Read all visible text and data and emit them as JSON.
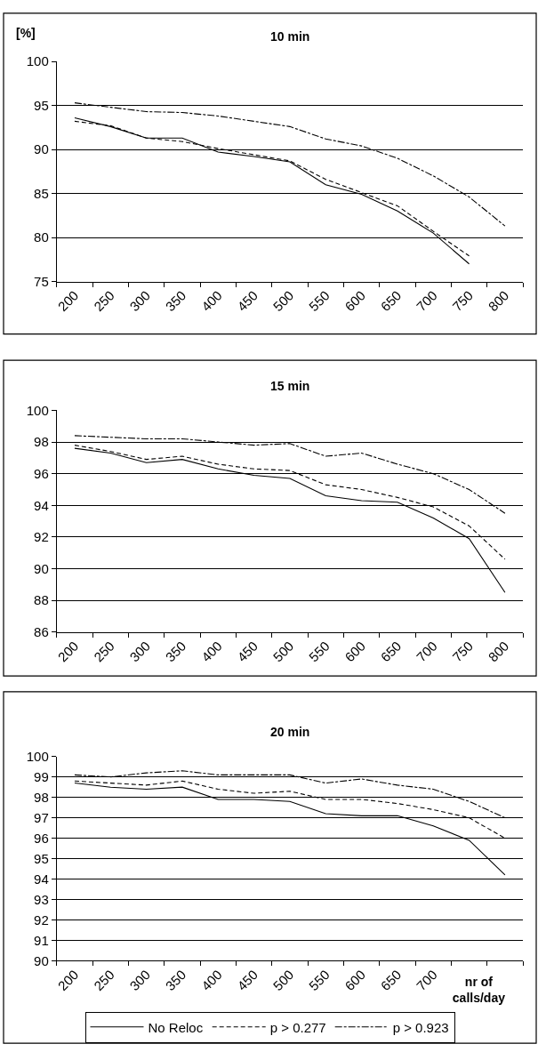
{
  "chart_data": [
    {
      "type": "line",
      "title": "10 min",
      "ylabel": "[%]",
      "categories": [
        "200",
        "250",
        "300",
        "350",
        "400",
        "450",
        "500",
        "550",
        "600",
        "650",
        "700",
        "750",
        "800"
      ],
      "ylim": [
        75,
        100
      ],
      "yticks": [
        75,
        80,
        85,
        90,
        95,
        100
      ],
      "grid": "y",
      "legend": false,
      "marker": "none",
      "series": [
        {
          "color": "#000000",
          "line_style": "solid",
          "values": [
            93.6,
            92.6,
            91.3,
            91.3,
            89.7,
            89.2,
            88.6,
            86.0,
            84.9,
            83.0,
            80.5,
            77.0,
            null
          ]
        },
        {
          "color": "#000000",
          "line_style": "dotted",
          "values": [
            93.2,
            92.7,
            91.3,
            90.9,
            90.1,
            89.4,
            88.7,
            86.6,
            85.1,
            83.6,
            80.7,
            77.9,
            null
          ]
        },
        {
          "color": "#000000",
          "line_style": "dashed",
          "values": [
            95.3,
            94.8,
            94.3,
            94.2,
            93.8,
            93.2,
            92.6,
            91.2,
            90.4,
            89.0,
            87.0,
            84.6,
            81.3
          ]
        }
      ]
    },
    {
      "type": "line",
      "title": "15 min",
      "categories": [
        "200",
        "250",
        "300",
        "350",
        "400",
        "450",
        "500",
        "550",
        "600",
        "650",
        "700",
        "750",
        "800"
      ],
      "ylim": [
        86,
        100
      ],
      "yticks": [
        86,
        88,
        90,
        92,
        94,
        96,
        98,
        100
      ],
      "grid": "y",
      "legend": false,
      "marker": "none",
      "series": [
        {
          "color": "#000000",
          "line_style": "solid",
          "values": [
            97.6,
            97.3,
            96.7,
            96.9,
            96.3,
            95.9,
            95.7,
            94.6,
            94.3,
            94.2,
            93.2,
            91.9,
            88.5
          ]
        },
        {
          "color": "#000000",
          "line_style": "dotted",
          "values": [
            97.8,
            97.4,
            96.9,
            97.1,
            96.6,
            96.3,
            96.2,
            95.3,
            95.0,
            94.5,
            93.9,
            92.7,
            90.6
          ]
        },
        {
          "color": "#000000",
          "line_style": "dashed",
          "values": [
            98.4,
            98.3,
            98.2,
            98.2,
            98.0,
            97.8,
            97.9,
            97.1,
            97.3,
            96.6,
            96.0,
            95.0,
            93.5
          ]
        }
      ]
    },
    {
      "type": "line",
      "title": "20 min",
      "xlabel": "nr of calls/day",
      "categories": [
        "200",
        "250",
        "300",
        "350",
        "400",
        "450",
        "500",
        "550",
        "600",
        "650",
        "700",
        null,
        null
      ],
      "ylim": [
        90,
        100
      ],
      "yticks": [
        90,
        91,
        92,
        93,
        94,
        95,
        96,
        97,
        98,
        99,
        100
      ],
      "grid": "y",
      "legend": "bottom",
      "marker": "none",
      "series": [
        {
          "name": "No Reloc",
          "color": "#000000",
          "line_style": "solid",
          "values": [
            98.7,
            98.5,
            98.4,
            98.5,
            97.9,
            97.9,
            97.8,
            97.2,
            97.1,
            97.1,
            96.6,
            95.9,
            94.2
          ]
        },
        {
          "name": "p > 0.277",
          "color": "#000000",
          "line_style": "dotted",
          "values": [
            98.8,
            98.7,
            98.6,
            98.8,
            98.4,
            98.2,
            98.3,
            97.9,
            97.9,
            97.7,
            97.4,
            97.0,
            96.0
          ]
        },
        {
          "name": "p > 0.923",
          "color": "#000000",
          "line_style": "dashed",
          "values": [
            99.1,
            99.0,
            99.2,
            99.3,
            99.1,
            99.1,
            99.1,
            98.7,
            98.9,
            98.6,
            98.4,
            97.8,
            97.0
          ]
        }
      ]
    }
  ]
}
